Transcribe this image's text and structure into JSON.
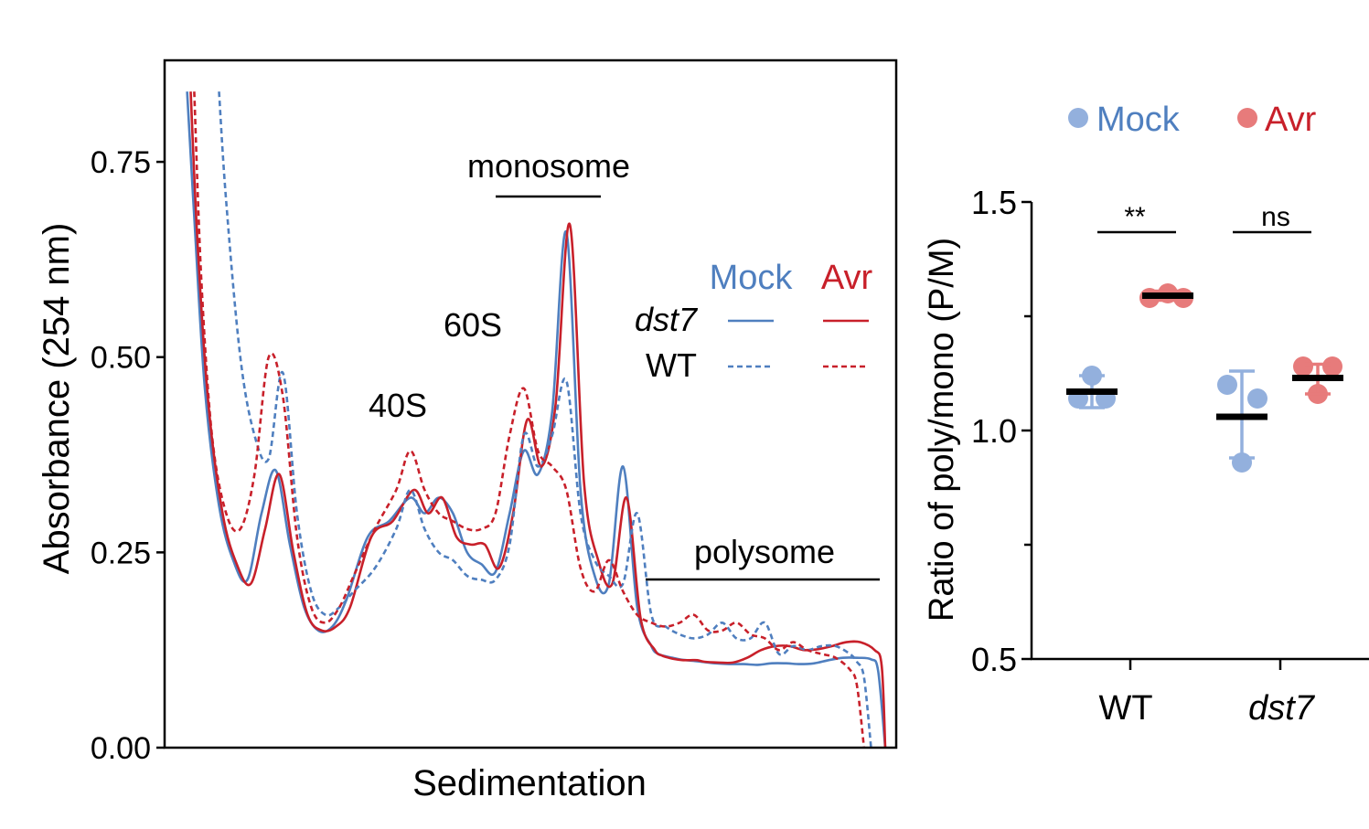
{
  "colors": {
    "mock": "#4f7fbf",
    "avr": "#c8202a",
    "mock_dot": "#93b0dd",
    "avr_dot": "#e77b7b",
    "axis": "#000000"
  },
  "chart_data": [
    {
      "type": "line",
      "title": "",
      "xlabel": "Sedimentation",
      "ylabel": "Absorbance (254 nm)",
      "ylim": [
        0,
        0.88
      ],
      "xlim": [
        0,
        100
      ],
      "yticks": [
        "0.00",
        "0.25",
        "0.50",
        "0.75"
      ],
      "ytick_values": [
        0,
        0.25,
        0.5,
        0.75
      ],
      "legend": {
        "placement": "right",
        "col_mock": "Mock",
        "col_avr": "Avr",
        "row_dst7": "dst7",
        "row_wt": "WT"
      },
      "annotations": {
        "monosome": "monosome",
        "s60": "60S",
        "s40": "40S",
        "polysome": "polysome"
      },
      "series": [
        {
          "name": "dst7 Mock",
          "genotype": "dst7",
          "treatment": "Mock",
          "style": "solid",
          "x": [
            1.5,
            2.5,
            4,
            6,
            8,
            10,
            12,
            14,
            16,
            18,
            20,
            22,
            24,
            27,
            30,
            33,
            35,
            37,
            39,
            41,
            43,
            45,
            47,
            49,
            51,
            53,
            55,
            57,
            59,
            61,
            63,
            65,
            67,
            68,
            69,
            70,
            71,
            72,
            73,
            74,
            76,
            78,
            80,
            82,
            84,
            86,
            88,
            90,
            92,
            94,
            96,
            98,
            99,
            100
          ],
          "y": [
            0.84,
            0.68,
            0.46,
            0.31,
            0.24,
            0.215,
            0.3,
            0.355,
            0.26,
            0.18,
            0.15,
            0.155,
            0.19,
            0.27,
            0.29,
            0.32,
            0.3,
            0.32,
            0.3,
            0.25,
            0.235,
            0.225,
            0.3,
            0.38,
            0.35,
            0.43,
            0.66,
            0.33,
            0.22,
            0.21,
            0.36,
            0.18,
            0.13,
            0.12,
            0.117,
            0.115,
            0.113,
            0.112,
            0.111,
            0.11,
            0.108,
            0.107,
            0.107,
            0.106,
            0.108,
            0.108,
            0.107,
            0.108,
            0.112,
            0.115,
            0.115,
            0.113,
            0.098,
            0.0
          ]
        },
        {
          "name": "dst7 Avr",
          "genotype": "dst7",
          "treatment": "Avr",
          "style": "solid",
          "x": [
            2,
            3,
            4.5,
            6.5,
            8.5,
            10.5,
            12.5,
            14.5,
            16.5,
            18.5,
            20.5,
            22.5,
            24.5,
            27.5,
            30.5,
            33.5,
            35.5,
            37.5,
            39.5,
            41.5,
            43.5,
            45.5,
            47.5,
            49.5,
            51.5,
            53.5,
            55.5,
            57.5,
            59.5,
            61.5,
            63.5,
            65.5,
            67.5,
            68.5,
            69.5,
            70.5,
            71.5,
            72.5,
            73.5,
            74.5,
            76.5,
            78.5,
            80.5,
            82.5,
            84.5,
            86.5,
            88.5,
            90.5,
            92.5,
            94.5,
            96.5,
            98.5,
            99.5,
            100
          ],
          "y": [
            0.84,
            0.64,
            0.44,
            0.3,
            0.235,
            0.21,
            0.28,
            0.35,
            0.25,
            0.17,
            0.15,
            0.155,
            0.18,
            0.27,
            0.29,
            0.33,
            0.3,
            0.32,
            0.27,
            0.26,
            0.26,
            0.23,
            0.3,
            0.42,
            0.36,
            0.44,
            0.67,
            0.34,
            0.24,
            0.21,
            0.32,
            0.165,
            0.125,
            0.118,
            0.115,
            0.113,
            0.112,
            0.112,
            0.112,
            0.11,
            0.109,
            0.109,
            0.115,
            0.125,
            0.13,
            0.13,
            0.125,
            0.126,
            0.13,
            0.135,
            0.135,
            0.125,
            0.105,
            0.0
          ]
        },
        {
          "name": "WT Mock",
          "genotype": "WT",
          "treatment": "Mock",
          "style": "dashed",
          "x": [
            6,
            7,
            9,
            11,
            13,
            15,
            17,
            19,
            21,
            23,
            25,
            28,
            31,
            33,
            35,
            37,
            39,
            41,
            43,
            45,
            47,
            49,
            51,
            53,
            55,
            57,
            59,
            61,
            63,
            65,
            67,
            69,
            71,
            73,
            75,
            77,
            79,
            81,
            83,
            85,
            87,
            89,
            91,
            93,
            95,
            96,
            97,
            98
          ],
          "y": [
            0.84,
            0.7,
            0.5,
            0.4,
            0.37,
            0.48,
            0.3,
            0.2,
            0.17,
            0.18,
            0.2,
            0.23,
            0.28,
            0.33,
            0.28,
            0.25,
            0.24,
            0.22,
            0.215,
            0.215,
            0.26,
            0.4,
            0.36,
            0.4,
            0.47,
            0.3,
            0.24,
            0.22,
            0.21,
            0.3,
            0.17,
            0.155,
            0.145,
            0.14,
            0.145,
            0.16,
            0.14,
            0.14,
            0.16,
            0.12,
            0.13,
            0.125,
            0.13,
            0.13,
            0.12,
            0.11,
            0.09,
            0.0
          ]
        },
        {
          "name": "WT Avr",
          "genotype": "WT",
          "treatment": "Avr",
          "style": "dashed",
          "x": [
            2.5,
            3.5,
            5,
            7,
            9,
            11,
            13,
            15,
            17,
            19,
            21,
            23,
            25,
            28,
            31,
            33,
            35,
            37,
            39,
            41,
            43,
            45,
            47,
            49,
            51,
            53,
            55,
            57,
            59,
            61,
            63,
            65,
            67,
            69,
            71,
            73,
            75,
            77,
            79,
            81,
            83,
            85,
            87,
            89,
            91,
            93,
            95,
            96,
            97
          ],
          "y": [
            0.84,
            0.6,
            0.4,
            0.3,
            0.28,
            0.35,
            0.5,
            0.45,
            0.27,
            0.18,
            0.16,
            0.18,
            0.22,
            0.28,
            0.33,
            0.38,
            0.33,
            0.3,
            0.29,
            0.28,
            0.28,
            0.3,
            0.4,
            0.46,
            0.38,
            0.36,
            0.33,
            0.23,
            0.2,
            0.24,
            0.2,
            0.17,
            0.16,
            0.155,
            0.16,
            0.17,
            0.15,
            0.15,
            0.16,
            0.145,
            0.14,
            0.125,
            0.135,
            0.125,
            0.12,
            0.115,
            0.1,
            0.08,
            0.0
          ]
        }
      ]
    },
    {
      "type": "scatter",
      "title": "",
      "xlabel": "",
      "ylabel": "Ratio of poly/mono (P/M)",
      "ylim": [
        0.5,
        1.5
      ],
      "yticks": [
        "0.5",
        "1.0",
        "1.5"
      ],
      "ytick_values": [
        0.5,
        1.0,
        1.5
      ],
      "categories": [
        "WT",
        "dst7"
      ],
      "legend": {
        "placement": "top",
        "items": [
          "Mock",
          "Avr"
        ]
      },
      "groups": [
        {
          "category": "WT",
          "treatment": "Mock",
          "points": [
            1.12,
            1.07,
            1.07
          ],
          "mean": 1.085,
          "err_low": 1.05,
          "err_high": 1.12
        },
        {
          "category": "WT",
          "treatment": "Avr",
          "points": [
            1.29,
            1.3,
            1.29
          ],
          "mean": 1.295,
          "err_low": 1.285,
          "err_high": 1.305
        },
        {
          "category": "dst7",
          "treatment": "Mock",
          "points": [
            1.1,
            1.07,
            0.93
          ],
          "mean": 1.03,
          "err_low": 0.94,
          "err_high": 1.13
        },
        {
          "category": "dst7",
          "treatment": "Avr",
          "points": [
            1.14,
            1.14,
            1.08
          ],
          "mean": 1.115,
          "err_low": 1.08,
          "err_high": 1.145
        }
      ],
      "significance": [
        {
          "category": "WT",
          "label": "**"
        },
        {
          "category": "dst7",
          "label": "ns"
        }
      ]
    }
  ]
}
